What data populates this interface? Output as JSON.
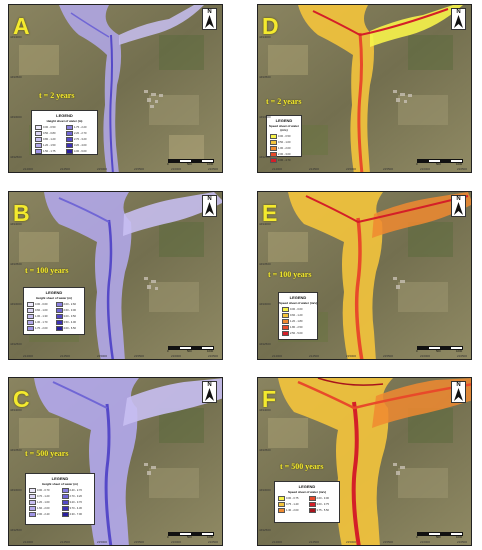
{
  "panels": [
    {
      "letter": "A",
      "period": "t = 2 years",
      "legend": {
        "title": "LEGEND",
        "subtitle": "Height sheet of water (m)",
        "columns": 2,
        "items": [
          {
            "label": "0.00 - 0.50",
            "color": "#ece8fb"
          },
          {
            "label": "1.75 - 2.20",
            "color": "#8a80e0"
          },
          {
            "label": "0.50 - 0.80",
            "color": "#ddd6f7"
          },
          {
            "label": "2.20 - 2.70",
            "color": "#7066d5"
          },
          {
            "label": "0.80 - 1.20",
            "color": "#c8bff2"
          },
          {
            "label": "2.70 - 3.20",
            "color": "#5549c8"
          },
          {
            "label": "1.20 - 1.50",
            "color": "#b3a9ec"
          },
          {
            "label": "3.20 - 4.00",
            "color": "#3d31b6"
          },
          {
            "label": "1.50 - 1.75",
            "color": "#9f94e6"
          },
          {
            "label": "4.00 - 6.00",
            "color": "#2a1fa0"
          }
        ]
      },
      "x_ticks": [
        "214000",
        "214500",
        "215000",
        "215500",
        "216000",
        "216500"
      ],
      "y_ticks": [
        "4494000",
        "4493500",
        "4493000",
        "4492500"
      ],
      "scale": {
        "left": "0",
        "mid": "500",
        "right": "1000"
      },
      "north": "N"
    },
    {
      "letter": "D",
      "period": "t = 2 years",
      "legend": {
        "title": "LEGEND",
        "subtitle": "Speed sheet of water (m/s)",
        "columns": 1,
        "items": [
          {
            "label": "0.00 - 0.50",
            "color": "#f7f34a"
          },
          {
            "label": "0.50 - 1.00",
            "color": "#f4c43c"
          },
          {
            "label": "1.00 - 2.00",
            "color": "#f08a30"
          },
          {
            "label": "2.00 - 3.00",
            "color": "#e84a2a"
          },
          {
            "label": "3.00 - 4.70",
            "color": "#d41f28"
          }
        ]
      },
      "x_ticks": [
        "214000",
        "214500",
        "215000",
        "215500",
        "216000",
        "216500"
      ],
      "y_ticks": [
        "4494000",
        "4493500",
        "4493000",
        "4492500"
      ],
      "scale": {
        "left": "0",
        "mid": "500",
        "right": "1000"
      },
      "north": "N"
    },
    {
      "letter": "B",
      "period": "t = 100 years",
      "legend": {
        "title": "LEGEND",
        "subtitle": "Height sheet of water (m)",
        "columns": 2,
        "items": [
          {
            "label": "0.00 - 0.60",
            "color": "#ece8fb"
          },
          {
            "label": "2.00 - 2.60",
            "color": "#8a80e0"
          },
          {
            "label": "0.60 - 1.00",
            "color": "#ddd6f7"
          },
          {
            "label": "2.60 - 3.00",
            "color": "#7066d5"
          },
          {
            "label": "1.00 - 1.30",
            "color": "#c8bff2"
          },
          {
            "label": "3.00 - 3.50",
            "color": "#5549c8"
          },
          {
            "label": "1.30 - 1.70",
            "color": "#b3a9ec"
          },
          {
            "label": "3.50 - 4.00",
            "color": "#3d31b6"
          },
          {
            "label": "1.70 - 2.00",
            "color": "#9f94e6"
          },
          {
            "label": "4.00 - 6.50",
            "color": "#2a1fa0"
          }
        ]
      },
      "x_ticks": [
        "214000",
        "214500",
        "215000",
        "215500",
        "216000",
        "216500"
      ],
      "y_ticks": [
        "4494000",
        "4493500",
        "4493000",
        "4492500"
      ],
      "scale": {
        "left": "0",
        "mid": "500",
        "right": "1000"
      },
      "north": "N"
    },
    {
      "letter": "E",
      "period": "t = 100 years",
      "legend": {
        "title": "LEGEND",
        "subtitle": "Speed sheet of water (m/s)",
        "columns": 1,
        "items": [
          {
            "label": "0.00 - 0.60",
            "color": "#f7f34a"
          },
          {
            "label": "0.60 - 1.20",
            "color": "#f4c43c"
          },
          {
            "label": "1.20 - 1.80",
            "color": "#f08a30"
          },
          {
            "label": "1.80 - 2.50",
            "color": "#e84a2a"
          },
          {
            "label": "2.50 - 5.00",
            "color": "#d41f28"
          }
        ]
      },
      "x_ticks": [
        "214000",
        "214500",
        "215000",
        "215500",
        "216000",
        "216500"
      ],
      "y_ticks": [
        "4494000",
        "4493500",
        "4493000",
        "4492500"
      ],
      "scale": {
        "left": "0",
        "mid": "500",
        "right": "1000"
      },
      "north": "N"
    },
    {
      "letter": "C",
      "period": "t = 500 years",
      "legend": {
        "title": "LEGEND",
        "subtitle": "Height sheet of water (m)",
        "columns": 2,
        "items": [
          {
            "label": "0.00 - 0.70",
            "color": "#ece8fb"
          },
          {
            "label": "2.40 - 2.70",
            "color": "#8a80e0"
          },
          {
            "label": "0.70 - 1.20",
            "color": "#ddd6f7"
          },
          {
            "label": "2.70 - 3.20",
            "color": "#7066d5"
          },
          {
            "label": "1.20 - 1.60",
            "color": "#c8bff2"
          },
          {
            "label": "3.20 - 3.70",
            "color": "#5549c8"
          },
          {
            "label": "1.60 - 2.00",
            "color": "#b3a9ec"
          },
          {
            "label": "3.70 - 4.30",
            "color": "#3d31b6"
          },
          {
            "label": "2.00 - 2.40",
            "color": "#9f94e6"
          },
          {
            "label": "4.30 - 7.00",
            "color": "#2a1fa0"
          }
        ]
      },
      "x_ticks": [
        "214000",
        "214500",
        "215000",
        "215500",
        "216000",
        "216500"
      ],
      "y_ticks": [
        "4494000",
        "4493500",
        "4493000",
        "4492500"
      ],
      "scale": {
        "left": "0",
        "mid": "500",
        "right": "1000"
      },
      "north": "N"
    },
    {
      "letter": "F",
      "period": "t = 500 years",
      "legend": {
        "title": "LEGEND",
        "subtitle": "Speed sheet of water (m/s)",
        "columns": 2,
        "items": [
          {
            "label": "0.00 - 0.75",
            "color": "#f7f34a"
          },
          {
            "label": "2.00 - 3.00",
            "color": "#e84a2a"
          },
          {
            "label": "0.75 - 1.40",
            "color": "#f4c43c"
          },
          {
            "label": "3.00 - 3.75",
            "color": "#d41f28"
          },
          {
            "label": "1.40 - 2.00",
            "color": "#f08a30"
          },
          {
            "label": "3.75 - 5.50",
            "color": "#a8141c"
          }
        ]
      },
      "x_ticks": [
        "214000",
        "214500",
        "215000",
        "215500",
        "216000",
        "216500"
      ],
      "y_ticks": [
        "4494000",
        "4493500",
        "4493000",
        "4492500"
      ],
      "scale": {
        "left": "0",
        "mid": "500",
        "right": "1000"
      },
      "north": "N"
    }
  ]
}
